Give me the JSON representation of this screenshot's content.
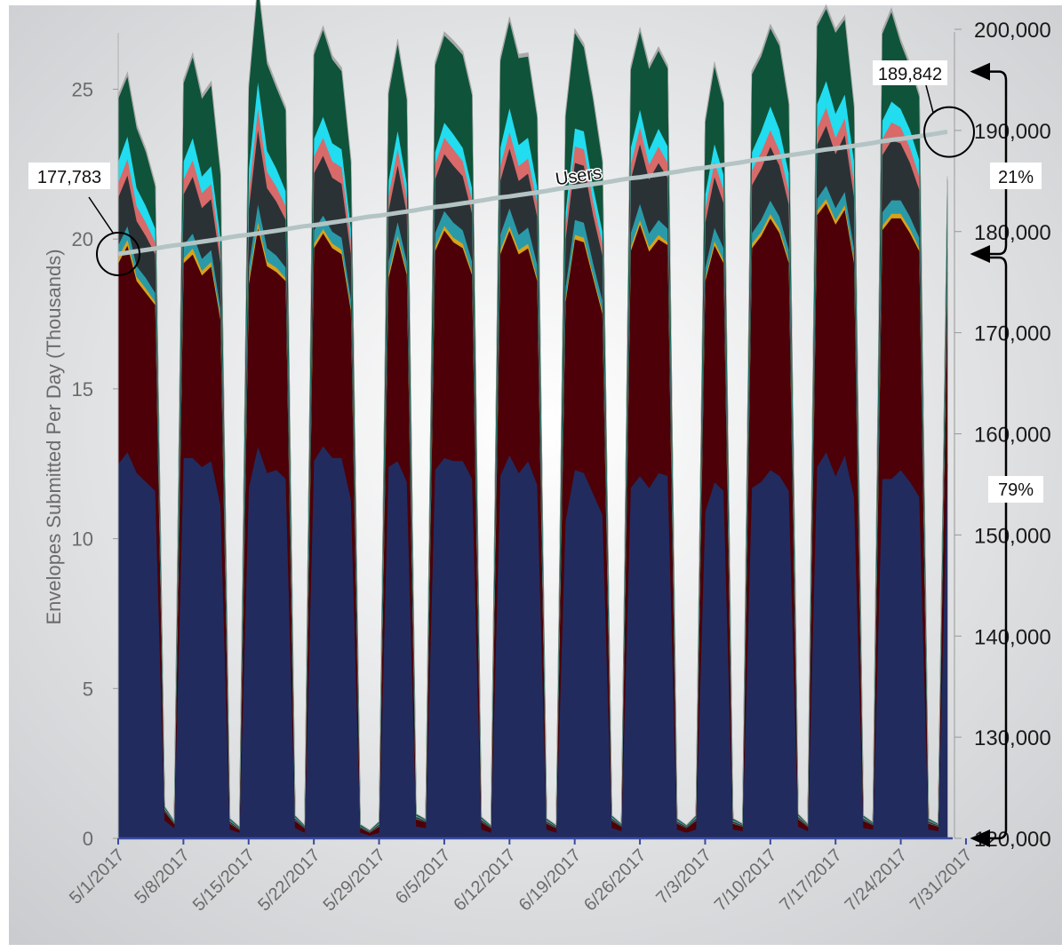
{
  "chart_data": {
    "type": "area",
    "stacked": true,
    "ylabel": "Envelopes Submitted Per Day (Thousands)",
    "ylim": [
      0,
      27
    ],
    "y_ticks": [
      "0",
      "5",
      "10",
      "15",
      "20",
      "25"
    ],
    "y2lim": [
      120000,
      200000
    ],
    "y2_ticks": [
      "120,000",
      "130,000",
      "140,000",
      "150,000",
      "160,000",
      "170,000",
      "180,000",
      "190,000",
      "200,000"
    ],
    "x_ticks": [
      "5/1/2017",
      "5/8/2017",
      "5/15/2017",
      "5/22/2017",
      "5/29/2017",
      "6/5/2017",
      "6/12/2017",
      "6/19/2017",
      "6/26/2017",
      "7/3/2017",
      "7/10/2017",
      "7/17/2017",
      "7/24/2017",
      "7/31/2017"
    ],
    "series": [
      {
        "color": "#222b5e",
        "values": [
          12.5,
          12.9,
          12.2,
          11.9,
          11.6,
          0.6,
          0.35,
          12.7,
          12.7,
          12.4,
          12.6,
          11.1,
          0.3,
          0.2,
          11.7,
          13.1,
          12.2,
          12.3,
          12.0,
          0.35,
          0.2,
          12.6,
          13.1,
          12.7,
          12.7,
          11.3,
          0.2,
          0.1,
          0.2,
          12.4,
          12.6,
          11.9,
          0.4,
          0.35,
          12.3,
          12.7,
          12.6,
          12.6,
          12.0,
          0.3,
          0.2,
          12.1,
          12.8,
          12.2,
          12.6,
          11.8,
          0.3,
          0.2,
          10.6,
          12.3,
          12.2,
          11.5,
          10.8,
          0.35,
          0.25,
          11.7,
          12.1,
          11.7,
          12.2,
          12.1,
          0.3,
          0.2,
          0.3,
          10.9,
          11.9,
          11.6,
          0.3,
          0.25,
          11.7,
          11.9,
          12.3,
          12.1,
          11.6,
          0.4,
          0.25,
          12.4,
          12.9,
          12.1,
          12.8,
          11.4,
          0.35,
          0.3,
          12.0,
          12.0,
          12.3,
          11.9,
          11.4,
          0.3,
          0.25,
          12.5
        ]
      },
      {
        "color": "#4d0008",
        "values": [
          6.7,
          6.9,
          6.4,
          6.3,
          6.2,
          0.3,
          0.15,
          6.5,
          6.8,
          6.4,
          6.5,
          6.2,
          0.2,
          0.1,
          6.8,
          7.3,
          6.9,
          6.6,
          6.6,
          0.25,
          0.15,
          7.1,
          7.1,
          7.0,
          6.8,
          6.3,
          0.15,
          0.1,
          0.2,
          6.3,
          7.4,
          6.9,
          0.25,
          0.2,
          7.3,
          7.6,
          7.3,
          7.1,
          6.8,
          0.25,
          0.15,
          7.4,
          7.5,
          7.3,
          7.1,
          6.8,
          0.2,
          0.15,
          7.3,
          7.7,
          7.7,
          7.2,
          6.7,
          0.25,
          0.15,
          7.9,
          8.4,
          7.9,
          7.8,
          7.7,
          0.2,
          0.15,
          0.3,
          7.7,
          7.9,
          7.6,
          0.2,
          0.15,
          8.0,
          8.2,
          8.4,
          8.1,
          7.6,
          0.25,
          0.15,
          8.4,
          8.3,
          8.4,
          8.2,
          7.8,
          0.25,
          0.15,
          8.3,
          8.7,
          8.4,
          8.3,
          8.2,
          0.2,
          0.15,
          6.0
        ]
      },
      {
        "color": "#d9a21b",
        "values": [
          0.2,
          0.2,
          0.15,
          0.15,
          0.1,
          0.0,
          0.0,
          0.15,
          0.2,
          0.15,
          0.15,
          0.1,
          0.0,
          0.0,
          0.15,
          0.2,
          0.15,
          0.15,
          0.1,
          0.0,
          0.0,
          0.15,
          0.15,
          0.15,
          0.15,
          0.1,
          0.0,
          0.0,
          0.0,
          0.15,
          0.15,
          0.1,
          0.0,
          0.0,
          0.15,
          0.15,
          0.15,
          0.15,
          0.1,
          0.0,
          0.0,
          0.15,
          0.15,
          0.15,
          0.15,
          0.1,
          0.0,
          0.0,
          0.1,
          0.15,
          0.15,
          0.1,
          0.1,
          0.0,
          0.0,
          0.15,
          0.15,
          0.15,
          0.15,
          0.1,
          0.0,
          0.0,
          0.0,
          0.1,
          0.15,
          0.1,
          0.0,
          0.0,
          0.15,
          0.15,
          0.15,
          0.15,
          0.1,
          0.0,
          0.0,
          0.15,
          0.15,
          0.15,
          0.15,
          0.1,
          0.0,
          0.0,
          0.15,
          0.15,
          0.15,
          0.15,
          0.1,
          0.0,
          0.0,
          0.1
        ]
      },
      {
        "color": "#2a9aa8",
        "values": [
          0.4,
          0.45,
          0.35,
          0.35,
          0.3,
          0.02,
          0.01,
          0.45,
          0.5,
          0.4,
          0.4,
          0.3,
          0.02,
          0.01,
          0.45,
          0.6,
          0.45,
          0.4,
          0.35,
          0.02,
          0.01,
          0.45,
          0.45,
          0.4,
          0.4,
          0.3,
          0.01,
          0.01,
          0.02,
          0.4,
          0.45,
          0.35,
          0.02,
          0.01,
          0.45,
          0.5,
          0.5,
          0.45,
          0.35,
          0.02,
          0.01,
          0.5,
          0.6,
          0.5,
          0.55,
          0.45,
          0.02,
          0.01,
          0.4,
          0.5,
          0.5,
          0.4,
          0.35,
          0.02,
          0.01,
          0.45,
          0.55,
          0.45,
          0.5,
          0.45,
          0.02,
          0.01,
          0.02,
          0.35,
          0.45,
          0.4,
          0.02,
          0.01,
          0.35,
          0.4,
          0.45,
          0.4,
          0.35,
          0.02,
          0.01,
          0.4,
          0.45,
          0.4,
          0.45,
          0.4,
          0.02,
          0.01,
          0.45,
          0.45,
          0.45,
          0.4,
          0.35,
          0.02,
          0.01,
          0.3
        ]
      },
      {
        "color": "#2b3236",
        "values": [
          1.6,
          1.7,
          1.5,
          1.4,
          1.3,
          0.05,
          0.03,
          1.7,
          1.9,
          1.7,
          1.7,
          1.5,
          0.05,
          0.03,
          1.9,
          2.5,
          2.0,
          1.8,
          1.6,
          0.05,
          0.03,
          1.9,
          2.0,
          1.8,
          1.8,
          1.5,
          0.03,
          0.02,
          0.05,
          1.7,
          1.9,
          1.6,
          0.05,
          0.03,
          1.8,
          1.9,
          1.9,
          1.8,
          1.6,
          0.05,
          0.03,
          1.8,
          2.0,
          1.8,
          1.8,
          1.6,
          0.05,
          0.03,
          1.6,
          1.9,
          1.9,
          1.6,
          1.5,
          0.05,
          0.03,
          1.8,
          2.0,
          1.8,
          1.9,
          1.7,
          0.05,
          0.03,
          0.05,
          1.5,
          1.7,
          1.5,
          0.05,
          0.03,
          1.6,
          1.7,
          1.8,
          1.7,
          1.5,
          0.05,
          0.03,
          1.8,
          2.0,
          1.8,
          1.9,
          1.7,
          0.05,
          0.03,
          1.9,
          2.0,
          1.9,
          1.8,
          1.6,
          0.05,
          0.03,
          0.8
        ]
      },
      {
        "color": "#d86a6a",
        "values": [
          0.5,
          0.55,
          0.5,
          0.45,
          0.4,
          0.02,
          0.01,
          0.5,
          0.55,
          0.5,
          0.5,
          0.45,
          0.02,
          0.01,
          0.55,
          0.7,
          0.55,
          0.5,
          0.45,
          0.02,
          0.01,
          0.55,
          0.6,
          0.55,
          0.55,
          0.45,
          0.01,
          0.01,
          0.02,
          0.5,
          0.55,
          0.5,
          0.02,
          0.01,
          0.5,
          0.55,
          0.55,
          0.5,
          0.45,
          0.02,
          0.01,
          0.5,
          0.55,
          0.5,
          0.5,
          0.45,
          0.02,
          0.01,
          0.45,
          0.55,
          0.55,
          0.45,
          0.4,
          0.02,
          0.01,
          0.5,
          0.55,
          0.5,
          0.55,
          0.5,
          0.02,
          0.01,
          0.02,
          0.45,
          0.5,
          0.45,
          0.02,
          0.01,
          0.5,
          0.55,
          0.55,
          0.5,
          0.45,
          0.02,
          0.01,
          0.55,
          0.6,
          0.55,
          0.55,
          0.5,
          0.02,
          0.01,
          0.55,
          0.6,
          0.55,
          0.5,
          0.45,
          0.02,
          0.01,
          0.3
        ]
      },
      {
        "color": "#22dcef",
        "values": [
          0.7,
          0.75,
          0.6,
          0.55,
          0.45,
          0.02,
          0.01,
          0.6,
          0.75,
          0.55,
          0.6,
          0.4,
          0.02,
          0.01,
          0.8,
          0.9,
          0.7,
          0.6,
          0.5,
          0.02,
          0.01,
          0.6,
          0.7,
          0.6,
          0.6,
          0.4,
          0.01,
          0.01,
          0.02,
          0.5,
          0.6,
          0.5,
          0.02,
          0.01,
          0.4,
          0.5,
          0.5,
          0.45,
          0.4,
          0.02,
          0.01,
          0.6,
          0.8,
          0.7,
          0.7,
          0.55,
          0.02,
          0.01,
          0.45,
          0.6,
          0.6,
          0.5,
          0.4,
          0.02,
          0.01,
          0.55,
          0.6,
          0.5,
          0.6,
          0.55,
          0.02,
          0.01,
          0.02,
          0.5,
          0.6,
          0.5,
          0.02,
          0.01,
          0.6,
          0.7,
          0.8,
          0.7,
          0.6,
          0.02,
          0.01,
          0.8,
          0.9,
          0.8,
          0.8,
          0.7,
          0.02,
          0.01,
          0.6,
          0.7,
          0.6,
          0.6,
          0.55,
          0.02,
          0.01,
          0.2
        ]
      },
      {
        "color": "#0f533a",
        "values": [
          2.1,
          2.0,
          2.0,
          1.8,
          1.4,
          0.05,
          0.03,
          2.6,
          2.7,
          2.6,
          2.7,
          2.1,
          0.05,
          0.03,
          2.7,
          3.2,
          2.9,
          2.7,
          2.7,
          0.05,
          0.03,
          2.8,
          2.9,
          2.8,
          2.6,
          2.2,
          0.05,
          0.02,
          0.05,
          2.9,
          2.9,
          2.8,
          0.05,
          0.03,
          2.9,
          2.9,
          3.0,
          3.1,
          3.1,
          0.05,
          0.03,
          2.9,
          2.9,
          2.9,
          2.7,
          2.3,
          0.05,
          0.03,
          3.2,
          3.2,
          2.8,
          2.9,
          2.3,
          0.05,
          0.03,
          2.6,
          2.6,
          2.7,
          2.6,
          2.6,
          0.05,
          0.03,
          0.05,
          2.4,
          2.6,
          2.4,
          0.05,
          0.03,
          2.6,
          2.5,
          2.6,
          2.8,
          2.3,
          0.05,
          0.03,
          2.6,
          2.4,
          2.7,
          2.5,
          1.8,
          0.05,
          0.03,
          2.9,
          3.0,
          2.2,
          2.1,
          2.1,
          0.05,
          0.03,
          1.8
        ]
      },
      {
        "color": "#a9a9a9",
        "values": [
          0.12,
          0.12,
          0.12,
          0.1,
          0.1,
          0.01,
          0.01,
          0.12,
          0.12,
          0.12,
          0.12,
          0.1,
          0.01,
          0.01,
          0.12,
          0.12,
          0.12,
          0.12,
          0.1,
          0.01,
          0.01,
          0.12,
          0.12,
          0.12,
          0.12,
          0.1,
          0.01,
          0.01,
          0.01,
          0.12,
          0.12,
          0.1,
          0.01,
          0.01,
          0.12,
          0.12,
          0.12,
          0.12,
          0.1,
          0.01,
          0.01,
          0.12,
          0.12,
          0.12,
          0.12,
          0.1,
          0.01,
          0.01,
          0.12,
          0.12,
          0.12,
          0.1,
          0.1,
          0.01,
          0.01,
          0.12,
          0.12,
          0.12,
          0.12,
          0.1,
          0.01,
          0.01,
          0.01,
          0.1,
          0.12,
          0.1,
          0.01,
          0.01,
          0.12,
          0.12,
          0.12,
          0.12,
          0.1,
          0.01,
          0.01,
          0.12,
          0.12,
          0.12,
          0.12,
          0.1,
          0.01,
          0.01,
          0.12,
          0.12,
          0.12,
          0.12,
          0.1,
          0.01,
          0.01,
          0.1
        ]
      }
    ],
    "users_line": {
      "label": "Users",
      "color": "#b4c4c4",
      "start": 177783,
      "end": 189842,
      "start_label": "177,783",
      "end_label": "189,842"
    },
    "annotations": {
      "upper_share": "21%",
      "lower_share": "79%"
    }
  },
  "colors": {
    "background_gradient": [
      "#ffffff",
      "#c9cbce"
    ],
    "axis": "#3a4aa0",
    "tick_text": "#6b6b6b"
  }
}
